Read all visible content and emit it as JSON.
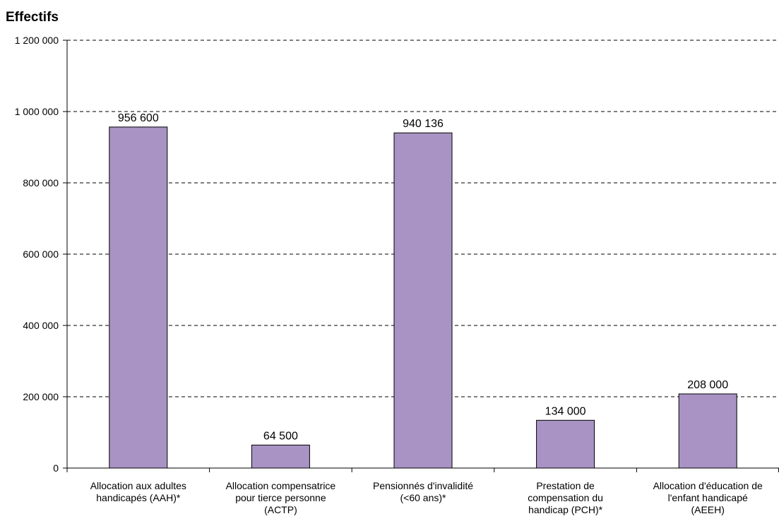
{
  "chart_data": {
    "type": "bar",
    "title": "",
    "ylabel": "Effectifs",
    "xlabel": "",
    "ylim": [
      0,
      1200000
    ],
    "yticks": [
      0,
      200000,
      400000,
      600000,
      800000,
      1000000,
      1200000
    ],
    "ytick_labels": [
      "0",
      "200 000",
      "400 000",
      "600 000",
      "800 000",
      "1 000 000",
      "1 200 000"
    ],
    "grid": "horizontal dashed",
    "legend": "none",
    "bar_color": "#a893c4",
    "bar_edge_color": "#000000",
    "categories": [
      [
        "Allocation aux adultes",
        "handicapés (AAH)*"
      ],
      [
        "Allocation compensatrice",
        "pour tierce personne",
        "(ACTP)"
      ],
      [
        "Pensionnés d'invalidité",
        "(<60 ans)*"
      ],
      [
        "Prestation de",
        "compensation du",
        "handicap (PCH)*"
      ],
      [
        "Allocation d'éducation de",
        "l'enfant handicapé",
        "(AEEH)"
      ]
    ],
    "values": [
      956600,
      64500,
      940136,
      134000,
      208000
    ],
    "value_labels": [
      "956 600",
      "64 500",
      "940 136",
      "134 000",
      "208 000"
    ]
  }
}
